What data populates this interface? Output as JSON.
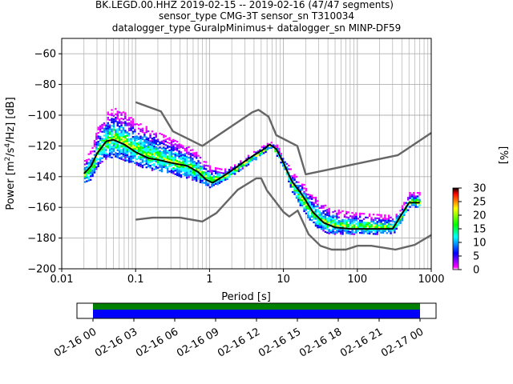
{
  "chart_data": {
    "type": "heatmap",
    "title_lines": [
      "BK.LEGD.00.HHZ   2019-02-15 -- 2019-02-16  (47/47 segments)",
      "sensor_type CMG-3T sensor_sn T310034",
      "datalogger_type GuralpMinimus+ datalogger_sn MINP-DF59"
    ],
    "xlabel": "Period [s]",
    "ylabel": "Power [m²/s⁴/Hz] [dB]",
    "x_scale": "log",
    "xlim": [
      0.01,
      1000
    ],
    "ylim": [
      -200,
      -50
    ],
    "x_ticks": [
      {
        "value": 0.01,
        "label": "0.01"
      },
      {
        "value": 0.1,
        "label": "0.1"
      },
      {
        "value": 1,
        "label": "1"
      },
      {
        "value": 10,
        "label": "10"
      },
      {
        "value": 100,
        "label": "100"
      },
      {
        "value": 1000,
        "label": "1000"
      }
    ],
    "y_ticks": [
      {
        "value": -60,
        "label": "−60"
      },
      {
        "value": -80,
        "label": "−80"
      },
      {
        "value": -100,
        "label": "−100"
      },
      {
        "value": -120,
        "label": "−120"
      },
      {
        "value": -140,
        "label": "−140"
      },
      {
        "value": -160,
        "label": "−160"
      },
      {
        "value": -180,
        "label": "−180"
      },
      {
        "value": -200,
        "label": "−200"
      }
    ],
    "grid": true,
    "colorbar": {
      "label": "[%]",
      "range": [
        0,
        30
      ],
      "ticks": [
        {
          "value": 0,
          "label": "0"
        },
        {
          "value": 5,
          "label": "5"
        },
        {
          "value": 10,
          "label": "10"
        },
        {
          "value": 15,
          "label": "15"
        },
        {
          "value": 20,
          "label": "20"
        },
        {
          "value": 25,
          "label": "25"
        },
        {
          "value": 30,
          "label": "30"
        }
      ],
      "colors": [
        "#ffffff",
        "#ff00ff",
        "#0000ff",
        "#00ffff",
        "#00ff00",
        "#ffff00",
        "#ff0000",
        "#000000"
      ]
    },
    "series": [
      {
        "role": "high noise model",
        "color": "#666666",
        "points": [
          [
            0.1,
            -91.5
          ],
          [
            0.22,
            -97.5
          ],
          [
            0.32,
            -110.5
          ],
          [
            0.8,
            -120.0
          ],
          [
            3.8,
            -98.0
          ],
          [
            4.6,
            -96.5
          ],
          [
            6.3,
            -101.0
          ],
          [
            8.0,
            -113.0
          ],
          [
            15.4,
            -120.0
          ],
          [
            20.0,
            -138.5
          ],
          [
            354.8,
            -126.0
          ],
          [
            1000,
            -111.5
          ]
        ]
      },
      {
        "role": "low noise model",
        "color": "#666666",
        "points": [
          [
            0.1,
            -168.0
          ],
          [
            0.17,
            -166.7
          ],
          [
            0.4,
            -166.7
          ],
          [
            0.8,
            -169.2
          ],
          [
            1.24,
            -163.7
          ],
          [
            2.4,
            -148.6
          ],
          [
            4.3,
            -141.1
          ],
          [
            5.0,
            -141.1
          ],
          [
            6.0,
            -149.0
          ],
          [
            10.0,
            -163.0
          ],
          [
            12.0,
            -166.0
          ],
          [
            15.6,
            -162.1
          ],
          [
            21.9,
            -177.5
          ],
          [
            31.6,
            -185.0
          ],
          [
            45.0,
            -187.5
          ],
          [
            70.0,
            -187.5
          ],
          [
            101.0,
            -185.0
          ],
          [
            154.0,
            -185.0
          ],
          [
            328.0,
            -187.5
          ],
          [
            600.0,
            -184.4
          ],
          [
            1000,
            -178.0
          ]
        ]
      },
      {
        "role": "mode",
        "color": "#000000",
        "points": [
          [
            0.02,
            -138.0
          ],
          [
            0.025,
            -133.0
          ],
          [
            0.03,
            -125.0
          ],
          [
            0.04,
            -117.0
          ],
          [
            0.05,
            -116.0
          ],
          [
            0.07,
            -119.0
          ],
          [
            0.1,
            -124.0
          ],
          [
            0.15,
            -128.0
          ],
          [
            0.2,
            -129.0
          ],
          [
            0.3,
            -131.0
          ],
          [
            0.5,
            -133.0
          ],
          [
            0.7,
            -137.0
          ],
          [
            0.9,
            -142.0
          ],
          [
            1.1,
            -144.0
          ],
          [
            1.5,
            -140.0
          ],
          [
            2.0,
            -136.0
          ],
          [
            3.0,
            -130.0
          ],
          [
            4.0,
            -126.0
          ],
          [
            5.5,
            -122.0
          ],
          [
            6.5,
            -119.0
          ],
          [
            8.0,
            -122.0
          ],
          [
            10.0,
            -131.0
          ],
          [
            13.0,
            -143.0
          ],
          [
            18.0,
            -152.0
          ],
          [
            25.0,
            -163.0
          ],
          [
            35.0,
            -170.0
          ],
          [
            50.0,
            -173.0
          ],
          [
            80.0,
            -174.0
          ],
          [
            150.0,
            -174.0
          ],
          [
            300.0,
            -174.0
          ],
          [
            380.0,
            -166.0
          ],
          [
            500.0,
            -157.0
          ],
          [
            700.0,
            -157.0
          ]
        ]
      }
    ],
    "heatmap_band": [
      {
        "x": 0.02,
        "lo": -144,
        "hi": -128
      },
      {
        "x": 0.025,
        "lo": -141,
        "hi": -122
      },
      {
        "x": 0.03,
        "lo": -133,
        "hi": -108
      },
      {
        "x": 0.04,
        "lo": -128,
        "hi": -98
      },
      {
        "x": 0.05,
        "lo": -127,
        "hi": -95
      },
      {
        "x": 0.07,
        "lo": -129,
        "hi": -98
      },
      {
        "x": 0.1,
        "lo": -132,
        "hi": -104
      },
      {
        "x": 0.15,
        "lo": -135,
        "hi": -108
      },
      {
        "x": 0.2,
        "lo": -136,
        "hi": -111
      },
      {
        "x": 0.3,
        "lo": -138,
        "hi": -115
      },
      {
        "x": 0.5,
        "lo": -141,
        "hi": -120
      },
      {
        "x": 0.7,
        "lo": -143,
        "hi": -125
      },
      {
        "x": 1.0,
        "lo": -147,
        "hi": -133
      },
      {
        "x": 1.5,
        "lo": -143,
        "hi": -135
      },
      {
        "x": 2.0,
        "lo": -139,
        "hi": -133
      },
      {
        "x": 3.0,
        "lo": -133,
        "hi": -127
      },
      {
        "x": 4.0,
        "lo": -129,
        "hi": -123
      },
      {
        "x": 5.5,
        "lo": -124,
        "hi": -119
      },
      {
        "x": 6.5,
        "lo": -121,
        "hi": -117
      },
      {
        "x": 8.0,
        "lo": -126,
        "hi": -119
      },
      {
        "x": 10.0,
        "lo": -135,
        "hi": -127
      },
      {
        "x": 13.0,
        "lo": -150,
        "hi": -137
      },
      {
        "x": 18.0,
        "lo": -162,
        "hi": -144
      },
      {
        "x": 25.0,
        "lo": -171,
        "hi": -152
      },
      {
        "x": 35.0,
        "lo": -176,
        "hi": -158
      },
      {
        "x": 50.0,
        "lo": -177,
        "hi": -161
      },
      {
        "x": 80.0,
        "lo": -177,
        "hi": -163
      },
      {
        "x": 150.0,
        "lo": -177,
        "hi": -164
      },
      {
        "x": 300.0,
        "lo": -177,
        "hi": -165
      },
      {
        "x": 380.0,
        "lo": -170,
        "hi": -160
      },
      {
        "x": 500.0,
        "lo": -160,
        "hi": -150
      },
      {
        "x": 700.0,
        "lo": -160,
        "hi": -150
      }
    ],
    "timeline": {
      "tick_labels": [
        "02-16 00",
        "02-16 03",
        "02-16 06",
        "02-16 09",
        "02-16 12",
        "02-16 15",
        "02-16 18",
        "02-16 21",
        "02-17 00"
      ],
      "data_color": "#0000ff",
      "coverage_color": "#008000"
    }
  }
}
